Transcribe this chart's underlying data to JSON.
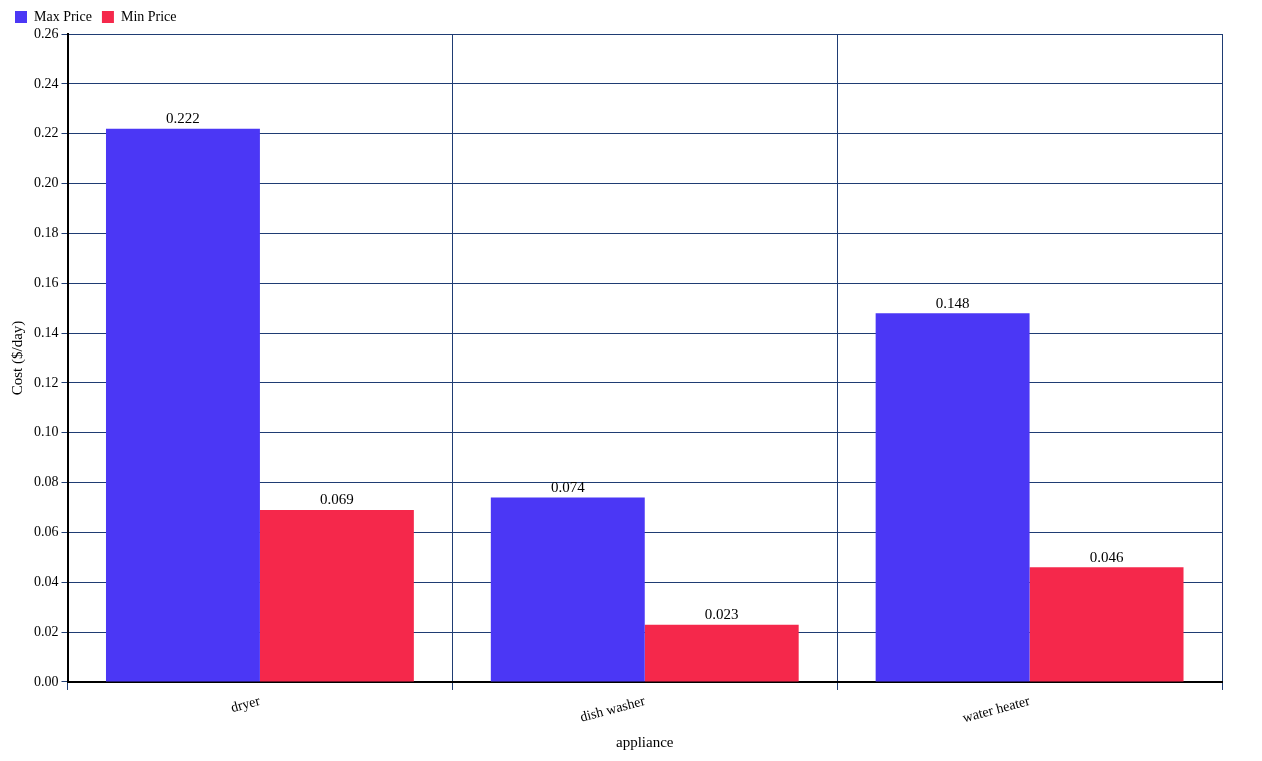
{
  "chart_data": {
    "type": "bar",
    "xlabel": "appliance",
    "ylabel": "Cost ($/day)",
    "categories": [
      "dryer",
      "dish washer",
      "water heater"
    ],
    "series": [
      {
        "name": "Max Price",
        "color": "#4b37f5",
        "values": [
          0.222,
          0.074,
          0.148
        ]
      },
      {
        "name": "Min Price",
        "color": "#f5284b",
        "values": [
          0.069,
          0.023,
          0.046
        ]
      }
    ],
    "ylim": [
      0,
      0.26
    ],
    "yticks": [
      {
        "value": 0,
        "label": "0.00"
      },
      {
        "value": 0.02,
        "label": "0.02"
      },
      {
        "value": 0.04,
        "label": "0.04"
      },
      {
        "value": 0.06,
        "label": "0.06"
      },
      {
        "value": 0.08,
        "label": "0.08"
      },
      {
        "value": 0.1,
        "label": "0.10"
      },
      {
        "value": 0.12,
        "label": "0.12"
      },
      {
        "value": 0.14,
        "label": "0.14"
      },
      {
        "value": 0.16,
        "label": "0.16"
      },
      {
        "value": 0.18,
        "label": "0.18"
      },
      {
        "value": 0.2,
        "label": "0.20"
      },
      {
        "value": 0.22,
        "label": "0.22"
      },
      {
        "value": 0.24,
        "label": "0.24"
      },
      {
        "value": 0.26,
        "label": "0.26"
      }
    ],
    "grid": true,
    "legend": "top left",
    "data_labels": true
  }
}
